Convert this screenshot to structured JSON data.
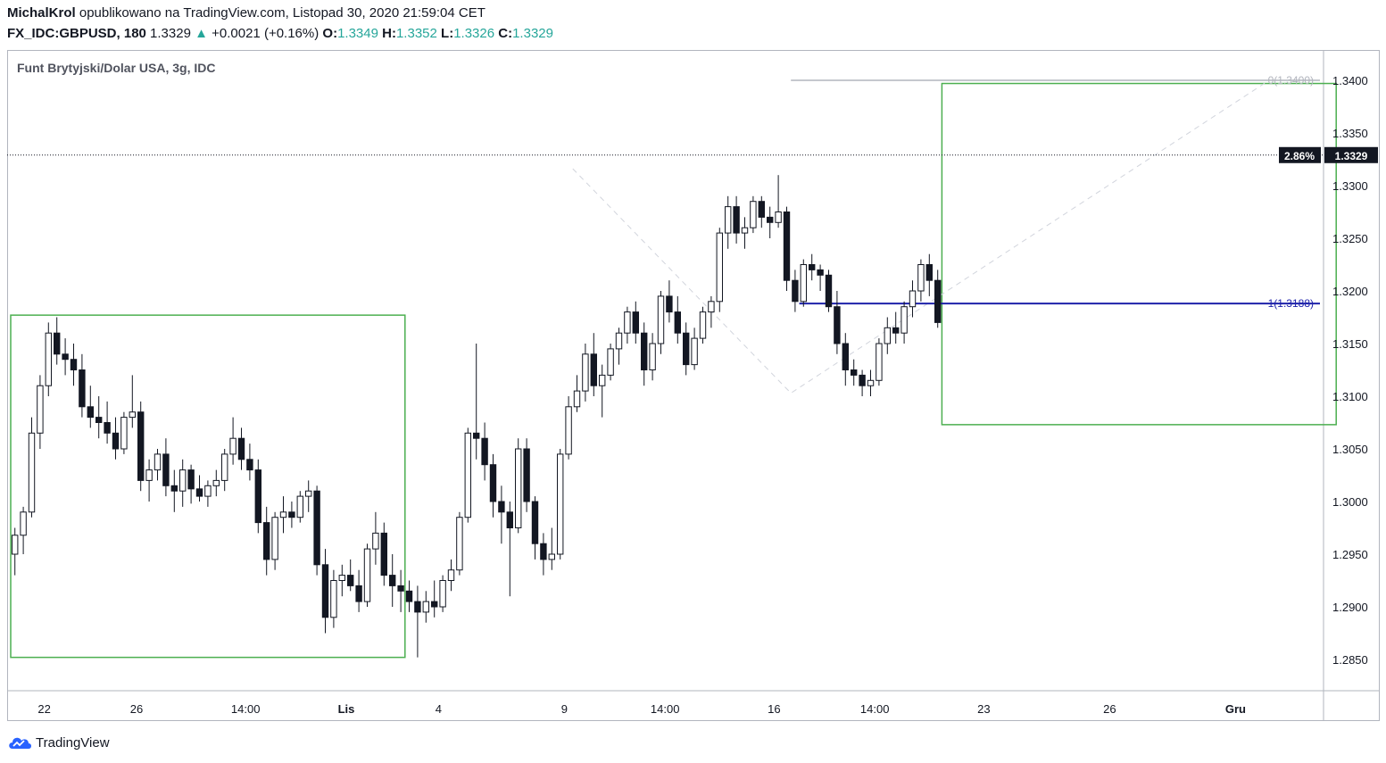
{
  "header": {
    "author": "MichalKrol",
    "published_text": "opublikowano na TradingView.com, Listopad 30, 2020 21:59:04 CET",
    "symbol": "FX_IDC:GBPUSD, 180",
    "last": "1.3329",
    "change": "+0.0021 (+0.16%)",
    "o_label": "O:",
    "o_val": "1.3349",
    "h_label": "H:",
    "h_val": "1.3352",
    "l_label": "L:",
    "l_val": "1.3326",
    "c_label": "C:",
    "c_val": "1.3329"
  },
  "legend": {
    "title": "Funt Brytyjski/Dolar USA, 3g, IDC"
  },
  "brand": {
    "name": "TradingView"
  },
  "colors": {
    "up_change": "#26a69a",
    "box": "#4caf50",
    "fib": "#1e22aa",
    "candle": "#131722"
  },
  "chart_data": {
    "type": "candlestick",
    "ylim": [
      1.2805,
      1.342
    ],
    "y_ticks": [
      1.34,
      1.335,
      1.33,
      1.325,
      1.32,
      1.315,
      1.31,
      1.305,
      1.3,
      1.295,
      1.29,
      1.285
    ],
    "y_tick_labels": [
      "1.3400",
      "1.3350",
      "1.3300",
      "1.3250",
      "1.3200",
      "1.3150",
      "1.3100",
      "1.3050",
      "1.3000",
      "1.2950",
      "1.2900",
      "1.2850"
    ],
    "x_ticks": [
      {
        "label": "22",
        "bar": 4
      },
      {
        "label": "26",
        "bar": 15
      },
      {
        "label": "14:00",
        "bar": 28
      },
      {
        "label": "Lis",
        "bar": 40
      },
      {
        "label": "4",
        "bar": 51
      },
      {
        "label": "9",
        "bar": 66
      },
      {
        "label": "14:00",
        "bar": 78
      },
      {
        "label": "16",
        "bar": 91
      },
      {
        "label": "14:00",
        "bar": 103
      },
      {
        "label": "23",
        "bar": 116
      },
      {
        "label": "26",
        "bar": 131
      },
      {
        "label": "Gru",
        "bar": 146
      }
    ],
    "current_price": 1.3329,
    "current_price_label": "1.3329",
    "current_pct_label": "2.86%",
    "fib_levels": [
      {
        "label": "0(1.3400)",
        "value": 1.34,
        "from_bar": 93,
        "to_bar": 162
      },
      {
        "label": "1(1.3188)",
        "value": 1.3188,
        "from_bar": 94,
        "to_bar": 162
      }
    ],
    "ranges": [
      {
        "from_bar": 0,
        "to_bar": 47,
        "high": 1.3177,
        "low": 1.2852
      },
      {
        "from_bar": 111,
        "to_bar": 158,
        "high": 1.3397,
        "low": 1.3073
      }
    ],
    "trend_lines": [
      {
        "points": [
          [
            67,
            1.3316
          ],
          [
            93,
            1.3103
          ],
          [
            150,
            1.34
          ]
        ]
      }
    ],
    "ohlc_note": "open/high/low/close per 3h bar",
    "candles": [
      [
        1.295,
        1.2975,
        1.293,
        1.2968
      ],
      [
        1.2968,
        1.2995,
        1.295,
        1.299
      ],
      [
        1.299,
        1.308,
        1.2985,
        1.3065
      ],
      [
        1.3065,
        1.312,
        1.305,
        1.311
      ],
      [
        1.311,
        1.317,
        1.31,
        1.316
      ],
      [
        1.316,
        1.3175,
        1.313,
        1.314
      ],
      [
        1.314,
        1.3155,
        1.312,
        1.3135
      ],
      [
        1.3135,
        1.315,
        1.311,
        1.3125
      ],
      [
        1.3125,
        1.314,
        1.308,
        1.309
      ],
      [
        1.309,
        1.311,
        1.307,
        1.308
      ],
      [
        1.308,
        1.31,
        1.306,
        1.3075
      ],
      [
        1.3075,
        1.3095,
        1.3055,
        1.3065
      ],
      [
        1.3065,
        1.308,
        1.304,
        1.305
      ],
      [
        1.305,
        1.3085,
        1.3045,
        1.308
      ],
      [
        1.308,
        1.312,
        1.307,
        1.3085
      ],
      [
        1.3085,
        1.3095,
        1.301,
        1.302
      ],
      [
        1.302,
        1.304,
        1.3,
        1.303
      ],
      [
        1.303,
        1.305,
        1.302,
        1.3045
      ],
      [
        1.3045,
        1.306,
        1.3005,
        1.3015
      ],
      [
        1.3015,
        1.303,
        1.299,
        1.301
      ],
      [
        1.301,
        1.304,
        1.2995,
        1.303
      ],
      [
        1.303,
        1.3035,
        1.2998,
        1.3012
      ],
      [
        1.3012,
        1.3025,
        1.3,
        1.3005
      ],
      [
        1.3005,
        1.302,
        1.2995,
        1.3015
      ],
      [
        1.3015,
        1.303,
        1.3005,
        1.302
      ],
      [
        1.302,
        1.305,
        1.301,
        1.3045
      ],
      [
        1.3045,
        1.308,
        1.3035,
        1.306
      ],
      [
        1.306,
        1.307,
        1.303,
        1.304
      ],
      [
        1.304,
        1.3055,
        1.302,
        1.303
      ],
      [
        1.303,
        1.304,
        1.297,
        1.298
      ],
      [
        1.298,
        1.2995,
        1.293,
        1.2945
      ],
      [
        1.2945,
        1.299,
        1.2935,
        1.2985
      ],
      [
        1.2985,
        1.3005,
        1.297,
        1.299
      ],
      [
        1.299,
        1.3,
        1.2975,
        1.2985
      ],
      [
        1.2985,
        1.301,
        1.298,
        1.3005
      ],
      [
        1.3005,
        1.302,
        1.299,
        1.301
      ],
      [
        1.301,
        1.3015,
        1.293,
        1.294
      ],
      [
        1.294,
        1.2955,
        1.2875,
        1.289
      ],
      [
        1.289,
        1.2935,
        1.288,
        1.2925
      ],
      [
        1.2925,
        1.294,
        1.291,
        1.293
      ],
      [
        1.293,
        1.2945,
        1.2915,
        1.292
      ],
      [
        1.292,
        1.2935,
        1.2895,
        1.2905
      ],
      [
        1.2905,
        1.296,
        1.29,
        1.2955
      ],
      [
        1.2955,
        1.299,
        1.294,
        1.297
      ],
      [
        1.297,
        1.298,
        1.292,
        1.293
      ],
      [
        1.293,
        1.295,
        1.29,
        1.292
      ],
      [
        1.292,
        1.2935,
        1.2895,
        1.2915
      ],
      [
        1.2915,
        1.2925,
        1.2895,
        1.2905
      ],
      [
        1.2905,
        1.292,
        1.2852,
        1.2895
      ],
      [
        1.2895,
        1.2915,
        1.2885,
        1.2905
      ],
      [
        1.2905,
        1.2925,
        1.289,
        1.29
      ],
      [
        1.29,
        1.293,
        1.2895,
        1.2925
      ],
      [
        1.2925,
        1.2945,
        1.2915,
        1.2935
      ],
      [
        1.2935,
        1.299,
        1.293,
        1.2985
      ],
      [
        1.2985,
        1.307,
        1.298,
        1.3065
      ],
      [
        1.3065,
        1.315,
        1.304,
        1.306
      ],
      [
        1.306,
        1.3075,
        1.302,
        1.3035
      ],
      [
        1.3035,
        1.3045,
        1.2985,
        1.3
      ],
      [
        1.3,
        1.3015,
        1.296,
        1.299
      ],
      [
        1.299,
        1.3,
        1.291,
        1.2975
      ],
      [
        1.2975,
        1.306,
        1.297,
        1.305
      ],
      [
        1.305,
        1.306,
        1.299,
        1.3
      ],
      [
        1.3,
        1.3005,
        1.2945,
        1.296
      ],
      [
        1.296,
        1.297,
        1.293,
        1.2945
      ],
      [
        1.2945,
        1.2975,
        1.2935,
        1.295
      ],
      [
        1.295,
        1.305,
        1.2945,
        1.3045
      ],
      [
        1.3045,
        1.31,
        1.304,
        1.309
      ],
      [
        1.309,
        1.312,
        1.3085,
        1.3105
      ],
      [
        1.3105,
        1.315,
        1.3095,
        1.314
      ],
      [
        1.314,
        1.316,
        1.31,
        1.311
      ],
      [
        1.311,
        1.313,
        1.308,
        1.312
      ],
      [
        1.312,
        1.315,
        1.3115,
        1.3145
      ],
      [
        1.3145,
        1.3165,
        1.313,
        1.316
      ],
      [
        1.316,
        1.3185,
        1.315,
        1.318
      ],
      [
        1.318,
        1.319,
        1.315,
        1.316
      ],
      [
        1.316,
        1.317,
        1.311,
        1.3125
      ],
      [
        1.3125,
        1.316,
        1.3115,
        1.315
      ],
      [
        1.315,
        1.32,
        1.314,
        1.3195
      ],
      [
        1.3195,
        1.321,
        1.317,
        1.318
      ],
      [
        1.318,
        1.3195,
        1.315,
        1.316
      ],
      [
        1.316,
        1.317,
        1.312,
        1.313
      ],
      [
        1.313,
        1.3165,
        1.3125,
        1.3155
      ],
      [
        1.3155,
        1.3185,
        1.315,
        1.318
      ],
      [
        1.318,
        1.3195,
        1.3165,
        1.319
      ],
      [
        1.319,
        1.326,
        1.318,
        1.3255
      ],
      [
        1.3255,
        1.329,
        1.324,
        1.328
      ],
      [
        1.328,
        1.329,
        1.3245,
        1.3255
      ],
      [
        1.3255,
        1.327,
        1.324,
        1.326
      ],
      [
        1.326,
        1.329,
        1.3255,
        1.3285
      ],
      [
        1.3285,
        1.329,
        1.326,
        1.327
      ],
      [
        1.327,
        1.328,
        1.325,
        1.3265
      ],
      [
        1.3265,
        1.331,
        1.326,
        1.3275
      ],
      [
        1.3275,
        1.328,
        1.32,
        1.321
      ],
      [
        1.321,
        1.322,
        1.318,
        1.319
      ],
      [
        1.319,
        1.323,
        1.3185,
        1.3225
      ],
      [
        1.3225,
        1.3235,
        1.321,
        1.322
      ],
      [
        1.322,
        1.3225,
        1.32,
        1.3215
      ],
      [
        1.3215,
        1.322,
        1.318,
        1.3185
      ],
      [
        1.3185,
        1.32,
        1.314,
        1.315
      ],
      [
        1.315,
        1.316,
        1.311,
        1.3125
      ],
      [
        1.3125,
        1.3135,
        1.311,
        1.312
      ],
      [
        1.312,
        1.3125,
        1.31,
        1.311
      ],
      [
        1.311,
        1.3125,
        1.31,
        1.3115
      ],
      [
        1.3115,
        1.3155,
        1.311,
        1.315
      ],
      [
        1.315,
        1.3175,
        1.314,
        1.3165
      ],
      [
        1.3165,
        1.318,
        1.315,
        1.316
      ],
      [
        1.316,
        1.319,
        1.315,
        1.3185
      ],
      [
        1.3185,
        1.321,
        1.3175,
        1.32
      ],
      [
        1.32,
        1.323,
        1.319,
        1.3225
      ],
      [
        1.3225,
        1.3235,
        1.3195,
        1.321
      ],
      [
        1.321,
        1.322,
        1.3165,
        1.317
      ]
    ]
  }
}
